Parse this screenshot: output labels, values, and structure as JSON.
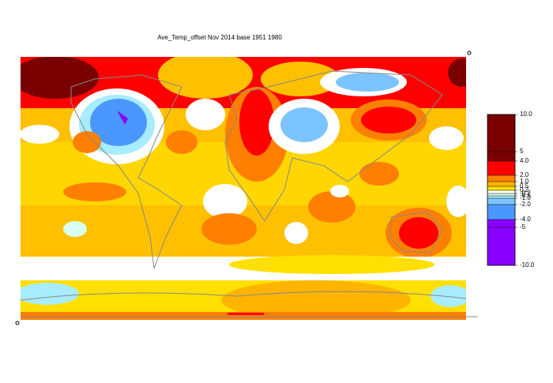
{
  "title": "Ave_Temp_offset Nov 2014  base 1951 1980",
  "legend": {
    "labels": [
      "10.0",
      "5",
      "4.0",
      "2.0",
      "1.0",
      "0.5",
      "0.2",
      "-0.2",
      "-0.5",
      "-1.0",
      "-2.0",
      "-4.0",
      "-5",
      "-10.0"
    ],
    "colors": [
      "#7a0000",
      "#7a0000",
      "#ff0000",
      "#ff8000",
      "#ffb400",
      "#ffe000",
      "#ffffff",
      "#d8fff0",
      "#a8ecff",
      "#7cc4ff",
      "#4a98ff",
      "#8a00ff",
      "#8a00ff"
    ]
  }
}
